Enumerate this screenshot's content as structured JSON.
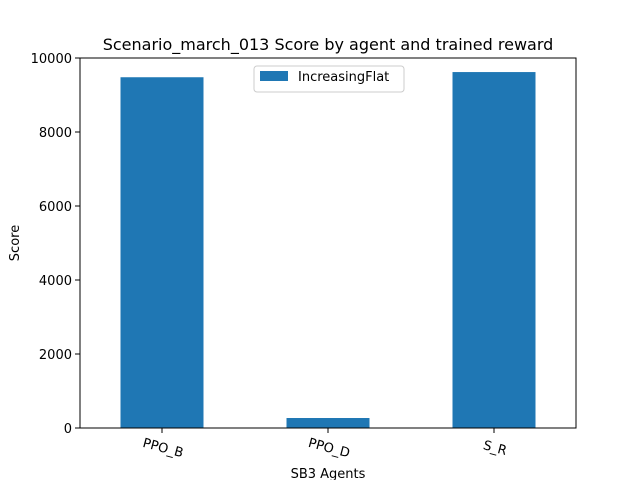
{
  "chart_data": {
    "type": "bar",
    "title": "Scenario_march_013 Score by agent and trained reward",
    "xlabel": "SB3 Agents",
    "ylabel": "Score",
    "categories": [
      "PPO_B",
      "PPO_D",
      "S_R"
    ],
    "series": [
      {
        "name": "IncreasingFlat",
        "values": [
          9480,
          270,
          9620
        ],
        "color": "#1f77b4"
      }
    ],
    "ylim": [
      0,
      10000
    ],
    "yticks": [
      0,
      2000,
      4000,
      6000,
      8000,
      10000
    ],
    "grid": false,
    "legend_position": "top-center"
  }
}
